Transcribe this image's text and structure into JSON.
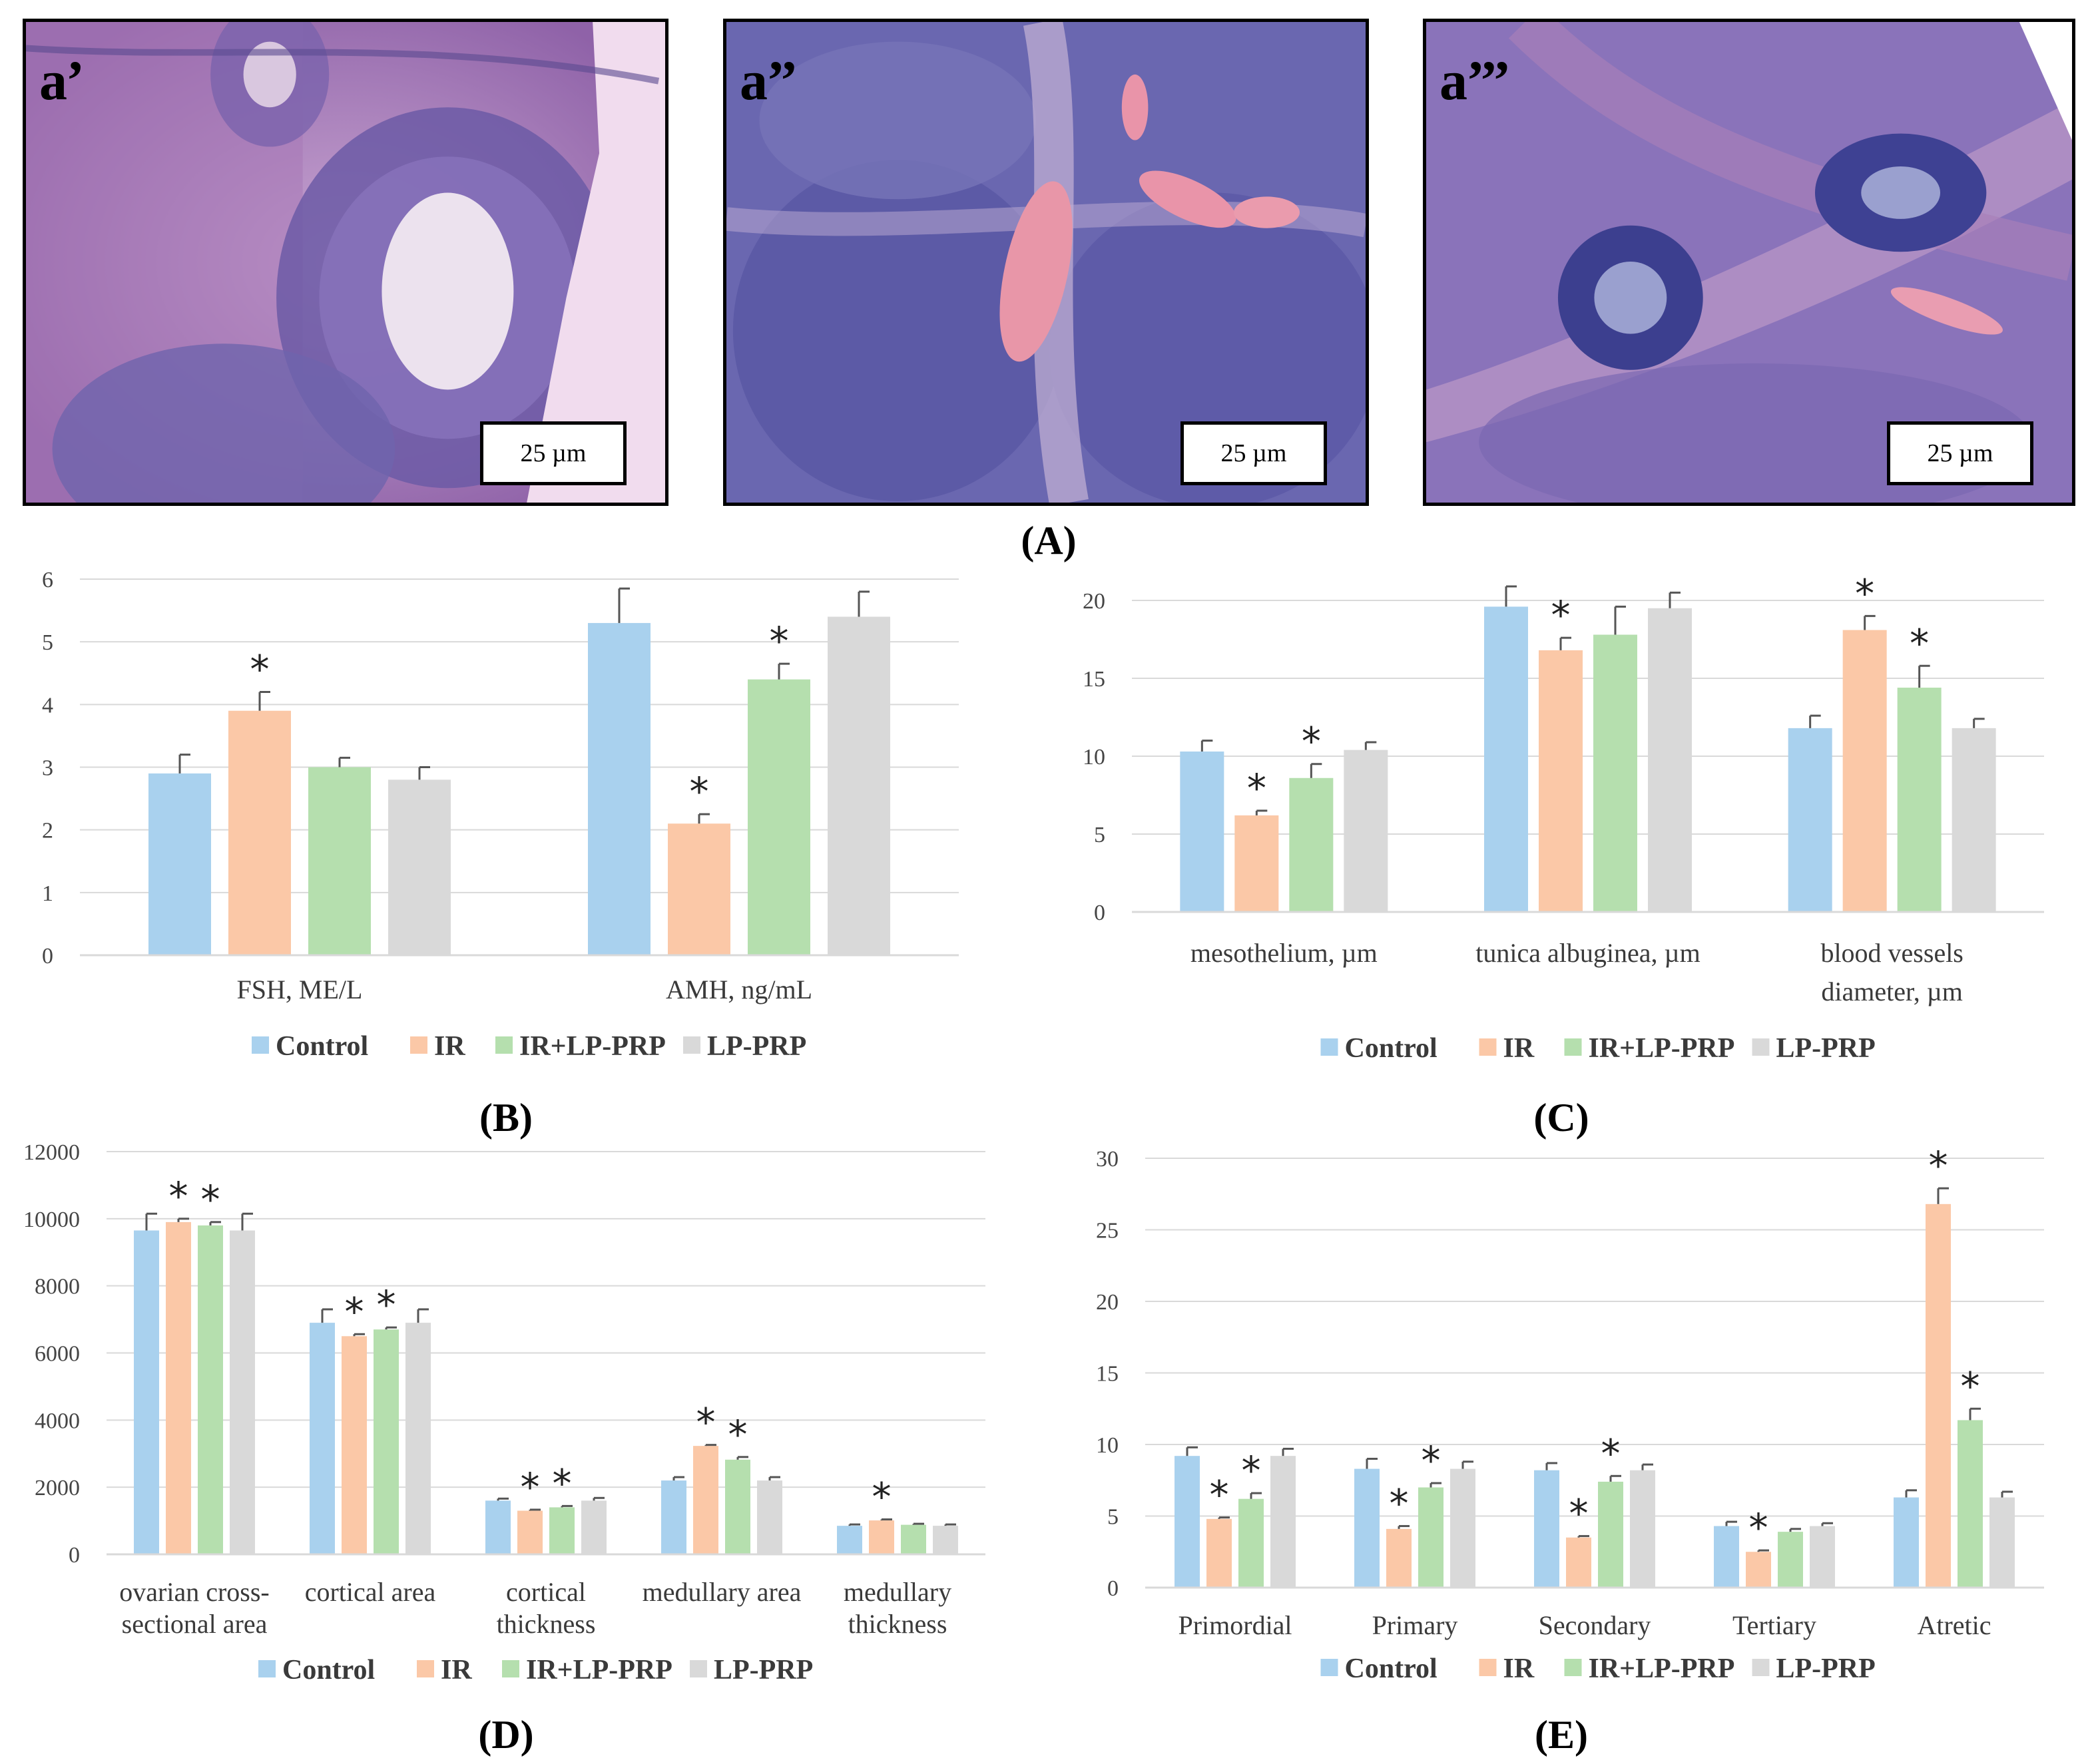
{
  "micrographs": [
    {
      "label": "a’",
      "scale_text": "25 µm",
      "tone": "#b27fbe"
    },
    {
      "label": "a’’",
      "scale_text": "25 µm",
      "tone": "#6d6bb5"
    },
    {
      "label": "a’’’",
      "scale_text": "25 µm",
      "tone": "#8b74bb"
    }
  ],
  "panel_labels": {
    "A": "(A)",
    "B": "(B)",
    "C": "(C)",
    "D": "(D)",
    "E": "(E)"
  },
  "series_names": [
    "Control",
    "IR",
    "IR+LP-PRP",
    "LP-PRP"
  ],
  "series_colors": [
    "#a9d1ee",
    "#fbc8a7",
    "#b5dfae",
    "#d9d9d9"
  ],
  "chart_data": [
    {
      "id": "B",
      "type": "bar",
      "categories": [
        "FSH, ME/L",
        "AMH, ng/mL"
      ],
      "ylim": [
        0,
        6
      ],
      "yticks": [
        0,
        1,
        2,
        3,
        4,
        5,
        6
      ],
      "series": [
        {
          "name": "Control",
          "values": [
            2.9,
            5.3
          ],
          "errors": [
            0.3,
            0.55
          ],
          "significant": [
            false,
            false
          ]
        },
        {
          "name": "IR",
          "values": [
            3.9,
            2.1
          ],
          "errors": [
            0.3,
            0.15
          ],
          "significant": [
            true,
            true
          ]
        },
        {
          "name": "IR+LP-PRP",
          "values": [
            3.0,
            4.4
          ],
          "errors": [
            0.15,
            0.25
          ],
          "significant": [
            false,
            true
          ]
        },
        {
          "name": "LP-PRP",
          "values": [
            2.8,
            5.4
          ],
          "errors": [
            0.2,
            0.4
          ],
          "significant": [
            false,
            false
          ]
        }
      ],
      "legend": "bottom"
    },
    {
      "id": "C",
      "type": "bar",
      "categories": [
        "mesothelium, µm",
        "tunica albuginea, µm",
        "blood vessels diameter, µm"
      ],
      "ylim": [
        0,
        20
      ],
      "yticks": [
        0,
        5,
        10,
        15,
        20
      ],
      "series": [
        {
          "name": "Control",
          "values": [
            10.3,
            19.6,
            11.8
          ],
          "errors": [
            0.7,
            1.3,
            0.8
          ],
          "significant": [
            false,
            false,
            false
          ]
        },
        {
          "name": "IR",
          "values": [
            6.2,
            16.8,
            18.1
          ],
          "errors": [
            0.3,
            0.8,
            0.9
          ],
          "significant": [
            true,
            true,
            true
          ]
        },
        {
          "name": "IR+LP-PRP",
          "values": [
            8.6,
            17.8,
            14.4
          ],
          "errors": [
            0.9,
            1.8,
            1.4
          ],
          "significant": [
            true,
            false,
            true
          ]
        },
        {
          "name": "LP-PRP",
          "values": [
            10.4,
            19.5,
            11.8
          ],
          "errors": [
            0.5,
            1.0,
            0.6
          ],
          "significant": [
            false,
            false,
            false
          ]
        }
      ],
      "legend": "bottom"
    },
    {
      "id": "D",
      "type": "bar",
      "categories": [
        "ovarian cross-sectional area",
        "cortical area",
        "cortical thickness",
        "medullary area",
        "medullary thickness"
      ],
      "ylim": [
        0,
        12000
      ],
      "yticks": [
        0,
        2000,
        4000,
        6000,
        8000,
        10000,
        12000
      ],
      "series": [
        {
          "name": "Control",
          "values": [
            9650,
            6900,
            1600,
            2200,
            850
          ],
          "errors": [
            500,
            400,
            60,
            100,
            40
          ],
          "significant": [
            false,
            false,
            false,
            false,
            false
          ]
        },
        {
          "name": "IR",
          "values": [
            9900,
            6500,
            1300,
            3230,
            1010
          ],
          "errors": [
            100,
            60,
            30,
            30,
            30
          ],
          "significant": [
            true,
            true,
            true,
            true,
            true
          ]
        },
        {
          "name": "IR+LP-PRP",
          "values": [
            9800,
            6700,
            1400,
            2820,
            880
          ],
          "errors": [
            100,
            60,
            40,
            80,
            30
          ],
          "significant": [
            true,
            true,
            true,
            true,
            false
          ]
        },
        {
          "name": "LP-PRP",
          "values": [
            9650,
            6900,
            1600,
            2200,
            850
          ],
          "errors": [
            500,
            400,
            80,
            100,
            40
          ],
          "significant": [
            false,
            false,
            false,
            false,
            false
          ]
        }
      ],
      "legend": "bottom"
    },
    {
      "id": "E",
      "type": "bar",
      "categories": [
        "Primordial",
        "Primary",
        "Secondary",
        "Tertiary",
        "Atretic"
      ],
      "ylim": [
        0,
        30
      ],
      "yticks": [
        0,
        5,
        10,
        15,
        20,
        25,
        30
      ],
      "series": [
        {
          "name": "Control",
          "values": [
            9.2,
            8.3,
            8.2,
            4.3,
            6.3
          ],
          "errors": [
            0.6,
            0.7,
            0.5,
            0.3,
            0.5
          ],
          "significant": [
            false,
            false,
            false,
            false,
            false
          ]
        },
        {
          "name": "IR",
          "values": [
            4.8,
            4.1,
            3.5,
            2.5,
            26.8
          ],
          "errors": [
            0.1,
            0.2,
            0.1,
            0.1,
            1.1
          ],
          "significant": [
            true,
            true,
            true,
            true,
            true
          ]
        },
        {
          "name": "IR+LP-PRP",
          "values": [
            6.2,
            7.0,
            7.4,
            3.9,
            11.7
          ],
          "errors": [
            0.4,
            0.3,
            0.4,
            0.2,
            0.8
          ],
          "significant": [
            true,
            true,
            true,
            false,
            true
          ]
        },
        {
          "name": "LP-PRP",
          "values": [
            9.2,
            8.3,
            8.2,
            4.3,
            6.3
          ],
          "errors": [
            0.5,
            0.5,
            0.4,
            0.2,
            0.4
          ],
          "significant": [
            false,
            false,
            false,
            false,
            false
          ]
        }
      ],
      "legend": "bottom"
    }
  ]
}
